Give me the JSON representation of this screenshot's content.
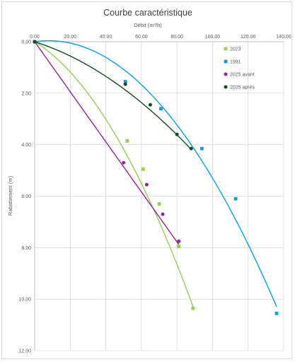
{
  "chart_data": {
    "type": "scatter",
    "title": "Courbe caractéristique",
    "xlabel": "Débit (m³/h)",
    "ylabel": "Rabattement (m)",
    "xlim": [
      0,
      140
    ],
    "ylim": [
      0,
      12
    ],
    "x_axis_position": "top",
    "y_axis_reversed": true,
    "x_ticks": [
      "0.00",
      "20.00",
      "40.00",
      "60.00",
      "80.00",
      "100.00",
      "120.00",
      "140.00"
    ],
    "y_ticks": [
      "0.00",
      "2.00",
      "4.00",
      "6.00",
      "8.00",
      "10.00",
      "12.00"
    ],
    "grid": true,
    "legend_position": "right",
    "series": [
      {
        "name": "2023",
        "color": "#92d050",
        "marker": "square",
        "points": [
          [
            0,
            0
          ],
          [
            52,
            3.85
          ],
          [
            61,
            4.95
          ],
          [
            70,
            6.3
          ],
          [
            81,
            7.95
          ],
          [
            89,
            10.35
          ]
        ],
        "trendline": {
          "type": "polynomial",
          "coef": [
            0,
            0.0425,
            0.00082
          ],
          "x_range": [
            0,
            89
          ]
        }
      },
      {
        "name": "1991",
        "color": "#00a2e8",
        "marker": "square",
        "points": [
          [
            0,
            0
          ],
          [
            51,
            1.55
          ],
          [
            71,
            2.6
          ],
          [
            94,
            4.15
          ],
          [
            113,
            6.1
          ],
          [
            136,
            10.55
          ]
        ],
        "trendline": {
          "type": "polynomial",
          "coef": [
            0,
            -0.01,
            0.00063
          ],
          "x_range": [
            0,
            136
          ]
        }
      },
      {
        "name": "2025 avant",
        "color": "#9b1f9b",
        "marker": "circle",
        "points": [
          [
            0,
            0
          ],
          [
            50,
            4.7
          ],
          [
            63,
            5.55
          ],
          [
            72,
            6.7
          ],
          [
            81,
            7.75
          ]
        ],
        "trendline": {
          "type": "polynomial",
          "coef": [
            0,
            0.0972,
            0.0
          ],
          "x_range": [
            0,
            81
          ]
        }
      },
      {
        "name": "2025 après",
        "color": "#0d4d1c",
        "marker": "circle",
        "points": [
          [
            0,
            0
          ],
          [
            51,
            1.65
          ],
          [
            65,
            2.45
          ],
          [
            80,
            3.6
          ],
          [
            88,
            4.15
          ]
        ],
        "trendline": {
          "type": "polynomial",
          "coef": [
            0,
            0.022,
            0.00029
          ],
          "x_range": [
            0,
            88
          ]
        }
      }
    ]
  }
}
